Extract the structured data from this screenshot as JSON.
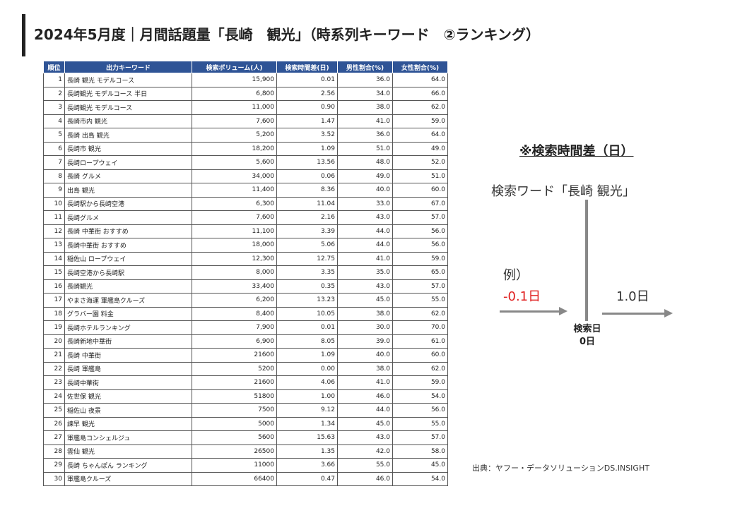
{
  "title": "2024年5月度｜月間話題量「長崎　観光」（時系列キーワード　②ランキング）",
  "table": {
    "headers": [
      "順位",
      "出力キーワード",
      "検索ボリューム(人)",
      "検索時間差(日)",
      "男性割合(%)",
      "女性割合(%)"
    ],
    "rows": [
      [
        "1",
        "長崎 観光 モデルコース",
        "15,900",
        "0.01",
        "36.0",
        "64.0"
      ],
      [
        "2",
        "長崎観光 モデルコース 半日",
        "6,800",
        "2.56",
        "34.0",
        "66.0"
      ],
      [
        "3",
        "長崎観光 モデルコース",
        "11,000",
        "0.90",
        "38.0",
        "62.0"
      ],
      [
        "4",
        "長崎市内 観光",
        "7,600",
        "1.47",
        "41.0",
        "59.0"
      ],
      [
        "5",
        "長崎 出島 観光",
        "5,200",
        "3.52",
        "36.0",
        "64.0"
      ],
      [
        "6",
        "長崎市 観光",
        "18,200",
        "1.09",
        "51.0",
        "49.0"
      ],
      [
        "7",
        "長崎ロープウェイ",
        "5,600",
        "13.56",
        "48.0",
        "52.0"
      ],
      [
        "8",
        "長崎 グルメ",
        "34,000",
        "0.06",
        "49.0",
        "51.0"
      ],
      [
        "9",
        "出島 観光",
        "11,400",
        "8.36",
        "40.0",
        "60.0"
      ],
      [
        "10",
        "長崎駅から長崎空港",
        "6,300",
        "11.04",
        "33.0",
        "67.0"
      ],
      [
        "11",
        "長崎グルメ",
        "7,600",
        "2.16",
        "43.0",
        "57.0"
      ],
      [
        "12",
        "長崎 中華街 おすすめ",
        "11,100",
        "3.39",
        "44.0",
        "56.0"
      ],
      [
        "13",
        "長崎中華街 おすすめ",
        "18,000",
        "5.06",
        "44.0",
        "56.0"
      ],
      [
        "14",
        "稲佐山 ロープウェイ",
        "12,300",
        "12.75",
        "41.0",
        "59.0"
      ],
      [
        "15",
        "長崎空港から長崎駅",
        "8,000",
        "3.35",
        "35.0",
        "65.0"
      ],
      [
        "16",
        "長崎観光",
        "33,400",
        "0.35",
        "43.0",
        "57.0"
      ],
      [
        "17",
        "やまさ海運 軍艦島クルーズ",
        "6,200",
        "13.23",
        "45.0",
        "55.0"
      ],
      [
        "18",
        "グラバー園 料金",
        "8,400",
        "10.05",
        "38.0",
        "62.0"
      ],
      [
        "19",
        "長崎ホテルランキング",
        "7,900",
        "0.01",
        "30.0",
        "70.0"
      ],
      [
        "20",
        "長崎新地中華街",
        "6,900",
        "8.05",
        "39.0",
        "61.0"
      ],
      [
        "21",
        "長崎 中華街",
        "21600",
        "1.09",
        "40.0",
        "60.0"
      ],
      [
        "22",
        "長崎 軍艦島",
        "5200",
        "0.00",
        "38.0",
        "62.0"
      ],
      [
        "23",
        "長崎中華街",
        "21600",
        "4.06",
        "41.0",
        "59.0"
      ],
      [
        "24",
        "佐世保 観光",
        "51800",
        "1.00",
        "46.0",
        "54.0"
      ],
      [
        "25",
        "稲佐山 夜景",
        "7500",
        "9.12",
        "44.0",
        "56.0"
      ],
      [
        "26",
        "諫早 観光",
        "5000",
        "1.34",
        "45.0",
        "55.0"
      ],
      [
        "27",
        "軍艦島コンシェルジュ",
        "5600",
        "15.63",
        "43.0",
        "57.0"
      ],
      [
        "28",
        "雲仙 観光",
        "26500",
        "1.35",
        "42.0",
        "58.0"
      ],
      [
        "29",
        "長崎 ちゃんぽん ランキング",
        "11000",
        "3.66",
        "55.0",
        "45.0"
      ],
      [
        "30",
        "軍艦島クルーズ",
        "66400",
        "0.47",
        "46.0",
        "54.0"
      ]
    ]
  },
  "note": {
    "title": "※検索時間差（日）",
    "search_word": "検索ワード「長崎 観光」",
    "example_label": "例）",
    "example_negative": "-0.1日",
    "example_positive": "1.0日",
    "base_label": "検索日",
    "base_value": "0日",
    "negative_color": "#e02020"
  },
  "source": "出典：ヤフー・データソリューションDS.INSIGHT",
  "colors": {
    "header_bg": "#2f5496",
    "header_text": "#ffffff",
    "axis_gray": "#888888"
  }
}
